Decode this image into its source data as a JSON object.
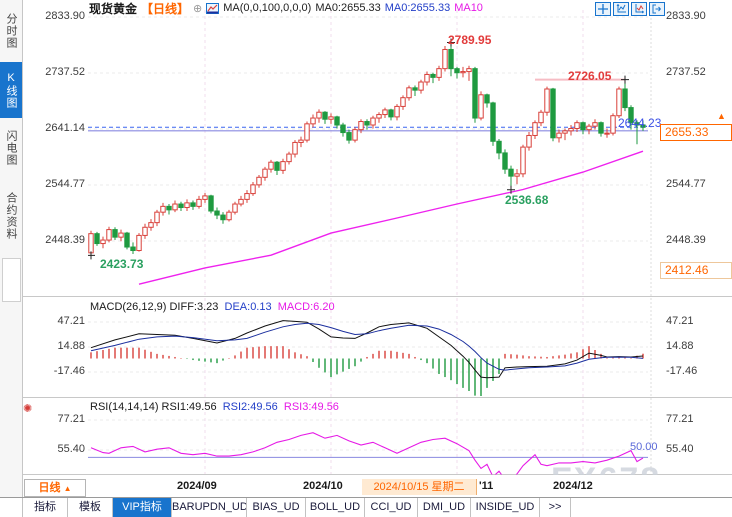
{
  "window_title": "现货黄金 日线 K线图",
  "sidebar": {
    "items": [
      {
        "label": "分时图",
        "active": false
      },
      {
        "label": "K线图",
        "active": true
      },
      {
        "label": "闪电图",
        "active": false
      },
      {
        "label": "合约资料",
        "active": false
      }
    ]
  },
  "header": {
    "symbol": "现货黄金",
    "period": "【日线】",
    "add_icon": "⊕",
    "ma_settings": "MA(0,0,100,0,0,0)",
    "ma0_primary": "MA0:2655.33",
    "ma0_secondary": "MA0:2655.33",
    "ma10": "MA10"
  },
  "toolbar_icons": [
    "crosshair",
    "axis-zoom-out",
    "axis-zoom-in",
    "exit-right"
  ],
  "price_axis": {
    "labels": [
      {
        "value": "2833.90",
        "price": 2833.9,
        "sides": "both"
      },
      {
        "value": "2737.52",
        "price": 2737.52,
        "sides": "both"
      },
      {
        "value": "2641.14",
        "price": 2641.14,
        "sides": "left"
      },
      {
        "value": "2544.77",
        "price": 2544.77,
        "sides": "both"
      },
      {
        "value": "2448.39",
        "price": 2448.39,
        "sides": "both"
      }
    ],
    "last_price_label": "2644.23",
    "close_box_label": "2655.33",
    "low_box_label": "2412.46",
    "up_arrow": "▲"
  },
  "annotations": {
    "high_peak": "2789.95",
    "swing_high": "2726.05",
    "low_start": "2423.73",
    "swing_low": "2536.68"
  },
  "macd_header": {
    "name": "MACD(26,12,9)",
    "diff": "DIFF:3.23",
    "dea": "DEA:0.13",
    "macd": "MACD:6.20"
  },
  "rsi_header": {
    "name": "RSI(14,14,14)",
    "rsi1": "RSI1:49.56",
    "rsi2": "RSI2:49.56",
    "rsi3": "RSI3:49.56"
  },
  "macd_axis": [
    "47.21",
    "14.88",
    "-17.46"
  ],
  "rsi_axis": [
    "77.21",
    "55.40"
  ],
  "rsi_ref_label": "50.00",
  "indicator_settings_icon": "✺",
  "xaxis": {
    "period_label": "日线",
    "period_arrow": "▲",
    "months": [
      "2024/09",
      "2024/10",
      "2024/12"
    ],
    "nov_partial": "'11",
    "tooltip": "2024/10/15 星期二"
  },
  "tabs": [
    {
      "label": "指标",
      "active": false
    },
    {
      "label": "模板",
      "active": false
    },
    {
      "label": "VIP指标",
      "active": true
    },
    {
      "label": "BARUPDN_UD",
      "active": false
    },
    {
      "label": "BIAS_UD",
      "active": false
    },
    {
      "label": "BOLL_UD",
      "active": false
    },
    {
      "label": "CCI_UD",
      "active": false
    },
    {
      "label": "DMI_UD",
      "active": false
    },
    {
      "label": "INSIDE_UD",
      "active": false
    },
    {
      "label": ">>",
      "active": false
    }
  ],
  "watermark": "FX678",
  "colors": {
    "up": "#d9403a",
    "down": "#1f9a40",
    "ma100": "#ee22ee",
    "diff_line": "#111111",
    "dea_line": "#1b2f9e",
    "rsi_line": "#e61ae6",
    "accent_orange": "#ff6600",
    "accent_blue": "#1874cd",
    "last_price_blue": "#3c50e8"
  },
  "chart_data": {
    "type": "candlestick",
    "title": "现货黄金 日线",
    "x_months": [
      {
        "label": "2024/09",
        "start_index": 19
      },
      {
        "label": "2024/10",
        "start_index": 40
      },
      {
        "label": "2024/11",
        "start_index": 61
      },
      {
        "label": "2024/12",
        "start_index": 82
      }
    ],
    "price_panel": {
      "grid_prices": [
        2833.9,
        2737.52,
        2641.14,
        2544.77,
        2448.39
      ],
      "last_price": 2644.23,
      "flat_ref_price": 2638.0,
      "resistance_line": {
        "price": 2726.05,
        "from_index": 74,
        "to_index": 89
      },
      "markers": [
        {
          "index": 0,
          "price": 2423.73
        },
        {
          "index": 60,
          "price": 2789.95
        },
        {
          "index": 70,
          "price": 2536.68
        },
        {
          "index": 89,
          "price": 2726.05
        }
      ],
      "ma100_points": [
        [
          8,
          2374
        ],
        [
          19,
          2402
        ],
        [
          30,
          2424
        ],
        [
          40,
          2462
        ],
        [
          51,
          2488
        ],
        [
          61,
          2512
        ],
        [
          72,
          2537
        ],
        [
          82,
          2567
        ],
        [
          92,
          2603
        ]
      ],
      "candles": [
        [
          2428,
          2466,
          2423.73,
          2461
        ],
        [
          2461,
          2464,
          2440,
          2444
        ],
        [
          2444,
          2456,
          2436,
          2450
        ],
        [
          2450,
          2473,
          2446,
          2468
        ],
        [
          2468,
          2472,
          2450,
          2455
        ],
        [
          2455,
          2468,
          2448,
          2462
        ],
        [
          2462,
          2464,
          2434,
          2438
        ],
        [
          2438,
          2446,
          2426,
          2432
        ],
        [
          2432,
          2462,
          2430,
          2458
        ],
        [
          2458,
          2478,
          2452,
          2472
        ],
        [
          2472,
          2486,
          2466,
          2480
        ],
        [
          2480,
          2502,
          2474,
          2498
        ],
        [
          2498,
          2514,
          2492,
          2508
        ],
        [
          2508,
          2512,
          2494,
          2502
        ],
        [
          2502,
          2518,
          2498,
          2512
        ],
        [
          2512,
          2516,
          2500,
          2506
        ],
        [
          2506,
          2520,
          2500,
          2514
        ],
        [
          2514,
          2518,
          2502,
          2508
        ],
        [
          2508,
          2526,
          2504,
          2520
        ],
        [
          2520,
          2531,
          2514,
          2526
        ],
        [
          2526,
          2528,
          2496,
          2500
        ],
        [
          2500,
          2506,
          2486,
          2493
        ],
        [
          2493,
          2498,
          2478,
          2485
        ],
        [
          2485,
          2502,
          2482,
          2498
        ],
        [
          2498,
          2516,
          2494,
          2512
        ],
        [
          2512,
          2526,
          2508,
          2520
        ],
        [
          2520,
          2536,
          2514,
          2530
        ],
        [
          2530,
          2550,
          2526,
          2545
        ],
        [
          2545,
          2562,
          2540,
          2558
        ],
        [
          2558,
          2576,
          2552,
          2572
        ],
        [
          2572,
          2588,
          2566,
          2584
        ],
        [
          2584,
          2586,
          2562,
          2570
        ],
        [
          2570,
          2590,
          2564,
          2585
        ],
        [
          2585,
          2602,
          2580,
          2598
        ],
        [
          2598,
          2622,
          2592,
          2618
        ],
        [
          2618,
          2628,
          2610,
          2622
        ],
        [
          2622,
          2654,
          2618,
          2650
        ],
        [
          2650,
          2666,
          2644,
          2660
        ],
        [
          2660,
          2675,
          2652,
          2670
        ],
        [
          2670,
          2672,
          2650,
          2658
        ],
        [
          2658,
          2668,
          2650,
          2662
        ],
        [
          2662,
          2664,
          2642,
          2648
        ],
        [
          2648,
          2652,
          2628,
          2635
        ],
        [
          2635,
          2640,
          2616,
          2622
        ],
        [
          2622,
          2644,
          2618,
          2640
        ],
        [
          2640,
          2658,
          2634,
          2654
        ],
        [
          2654,
          2658,
          2640,
          2648
        ],
        [
          2648,
          2664,
          2642,
          2660
        ],
        [
          2660,
          2670,
          2652,
          2666
        ],
        [
          2666,
          2678,
          2660,
          2674
        ],
        [
          2674,
          2676,
          2656,
          2662
        ],
        [
          2662,
          2684,
          2656,
          2680
        ],
        [
          2680,
          2699,
          2674,
          2695
        ],
        [
          2695,
          2716,
          2690,
          2712
        ],
        [
          2712,
          2716,
          2698,
          2708
        ],
        [
          2708,
          2726,
          2702,
          2722
        ],
        [
          2722,
          2740,
          2716,
          2735
        ],
        [
          2735,
          2738,
          2720,
          2730
        ],
        [
          2730,
          2750,
          2724,
          2745
        ],
        [
          2745,
          2784,
          2740,
          2778
        ],
        [
          2778,
          2789.95,
          2732,
          2745
        ],
        [
          2745,
          2748,
          2728,
          2738
        ],
        [
          2738,
          2748,
          2730,
          2740
        ],
        [
          2740,
          2750,
          2724,
          2745
        ],
        [
          2745,
          2748,
          2652,
          2660
        ],
        [
          2660,
          2706,
          2656,
          2700
        ],
        [
          2700,
          2702,
          2678,
          2686
        ],
        [
          2686,
          2688,
          2612,
          2620
        ],
        [
          2620,
          2624,
          2589,
          2600
        ],
        [
          2600,
          2606,
          2564,
          2572
        ],
        [
          2572,
          2578,
          2536.68,
          2560
        ],
        [
          2560,
          2572,
          2546,
          2564
        ],
        [
          2564,
          2614,
          2558,
          2610
        ],
        [
          2610,
          2636,
          2604,
          2630
        ],
        [
          2630,
          2656,
          2624,
          2652
        ],
        [
          2652,
          2674,
          2646,
          2670
        ],
        [
          2670,
          2714,
          2664,
          2710
        ],
        [
          2710,
          2712,
          2620,
          2626
        ],
        [
          2626,
          2640,
          2618,
          2634
        ],
        [
          2634,
          2642,
          2622,
          2638
        ],
        [
          2638,
          2648,
          2630,
          2642
        ],
        [
          2642,
          2656,
          2636,
          2652
        ],
        [
          2652,
          2654,
          2632,
          2640
        ],
        [
          2640,
          2650,
          2632,
          2646
        ],
        [
          2646,
          2658,
          2640,
          2652
        ],
        [
          2652,
          2654,
          2628,
          2634
        ],
        [
          2634,
          2642,
          2626,
          2634
        ],
        [
          2634,
          2668,
          2630,
          2664
        ],
        [
          2664,
          2714,
          2660,
          2710
        ],
        [
          2710,
          2726.05,
          2672,
          2678
        ],
        [
          2678,
          2682,
          2640,
          2652
        ],
        [
          2652,
          2656,
          2615,
          2648
        ],
        [
          2648,
          2656,
          2638,
          2644.23
        ]
      ]
    },
    "macd_panel": {
      "params": [
        26,
        12,
        9
      ],
      "diff": 3.23,
      "dea": 0.13,
      "macd": 6.2,
      "grid_values": [
        47.21,
        14.88,
        -17.46
      ],
      "hist_formula": "2*(DIFF-DEA)",
      "diff_points": [
        [
          0,
          14
        ],
        [
          4,
          24
        ],
        [
          8,
          32
        ],
        [
          11,
          31
        ],
        [
          14,
          30
        ],
        [
          17,
          26
        ],
        [
          21,
          20
        ],
        [
          24,
          26
        ],
        [
          26,
          33
        ],
        [
          29,
          42
        ],
        [
          32,
          49
        ],
        [
          34,
          48
        ],
        [
          36,
          47
        ],
        [
          38,
          38
        ],
        [
          40,
          28
        ],
        [
          42,
          26.5
        ],
        [
          44,
          26
        ],
        [
          46,
          33
        ],
        [
          48,
          41
        ],
        [
          50,
          44
        ],
        [
          53,
          46
        ],
        [
          56,
          39
        ],
        [
          58,
          28
        ],
        [
          60,
          17
        ],
        [
          62,
          3
        ],
        [
          63,
          -5
        ],
        [
          64,
          -15
        ],
        [
          65,
          -24
        ],
        [
          66,
          -25
        ],
        [
          68,
          -24
        ],
        [
          69,
          -12
        ],
        [
          71,
          -11
        ],
        [
          73,
          -10.5
        ],
        [
          76,
          -10
        ],
        [
          79,
          -7
        ],
        [
          81,
          -2
        ],
        [
          83,
          7
        ],
        [
          85,
          4
        ],
        [
          86,
          2
        ],
        [
          88,
          2.5
        ],
        [
          90,
          2
        ],
        [
          92,
          3.23
        ]
      ],
      "dea_points": [
        [
          0,
          10
        ],
        [
          4,
          17
        ],
        [
          8,
          25
        ],
        [
          11,
          28
        ],
        [
          14,
          29
        ],
        [
          17,
          27
        ],
        [
          21,
          23
        ],
        [
          24,
          24
        ],
        [
          26,
          26
        ],
        [
          29,
          34
        ],
        [
          32,
          41
        ],
        [
          34,
          44
        ],
        [
          36,
          45.5
        ],
        [
          38,
          44
        ],
        [
          40,
          40
        ],
        [
          42,
          35
        ],
        [
          44,
          31
        ],
        [
          46,
          32
        ],
        [
          48,
          36
        ],
        [
          50,
          39
        ],
        [
          53,
          43
        ],
        [
          56,
          42
        ],
        [
          58,
          38
        ],
        [
          60,
          31
        ],
        [
          62,
          22
        ],
        [
          63,
          16
        ],
        [
          64,
          9
        ],
        [
          65,
          1
        ],
        [
          66,
          -6
        ],
        [
          68,
          -14
        ],
        [
          69,
          -15
        ],
        [
          71,
          -13.5
        ],
        [
          73,
          -12
        ],
        [
          76,
          -11
        ],
        [
          79,
          -9.5
        ],
        [
          81,
          -6
        ],
        [
          83,
          -1
        ],
        [
          85,
          1
        ],
        [
          86,
          1.5
        ],
        [
          88,
          1.8
        ],
        [
          90,
          1.5
        ],
        [
          92,
          0.13
        ]
      ]
    },
    "rsi_panel": {
      "params": [
        14,
        14,
        14
      ],
      "rsi1": 49.56,
      "rsi2": 49.56,
      "rsi3": 49.56,
      "grid_values": [
        77.21,
        55.4
      ],
      "ref_value": 50.0,
      "rsi_points": [
        [
          0,
          57
        ],
        [
          2,
          53.5
        ],
        [
          3,
          53
        ],
        [
          5,
          57
        ],
        [
          7,
          58
        ],
        [
          9,
          54
        ],
        [
          11,
          56
        ],
        [
          13,
          57
        ],
        [
          15,
          53
        ],
        [
          17,
          52
        ],
        [
          19,
          53
        ],
        [
          21,
          51
        ],
        [
          23,
          51
        ],
        [
          25,
          52
        ],
        [
          27,
          54
        ],
        [
          29,
          57
        ],
        [
          31,
          61
        ],
        [
          33,
          63
        ],
        [
          35,
          66
        ],
        [
          37,
          68
        ],
        [
          39,
          64
        ],
        [
          41,
          66
        ],
        [
          43,
          62
        ],
        [
          45,
          59
        ],
        [
          47,
          61
        ],
        [
          49,
          57
        ],
        [
          51,
          53
        ],
        [
          53,
          57
        ],
        [
          55,
          61
        ],
        [
          57,
          63
        ],
        [
          59,
          64
        ],
        [
          61,
          60
        ],
        [
          63,
          55
        ],
        [
          64,
          48
        ],
        [
          65,
          42
        ],
        [
          66,
          45
        ],
        [
          67,
          36
        ],
        [
          68,
          40
        ],
        [
          69,
          34
        ],
        [
          70,
          33
        ],
        [
          71,
          38
        ],
        [
          72,
          44
        ],
        [
          73,
          48
        ],
        [
          74,
          52
        ],
        [
          75,
          45
        ],
        [
          76,
          44
        ],
        [
          78,
          46
        ],
        [
          80,
          46
        ],
        [
          82,
          47
        ],
        [
          84,
          46
        ],
        [
          86,
          48
        ],
        [
          88,
          51
        ],
        [
          90,
          55
        ],
        [
          91,
          47
        ],
        [
          92,
          49.56
        ]
      ]
    }
  }
}
